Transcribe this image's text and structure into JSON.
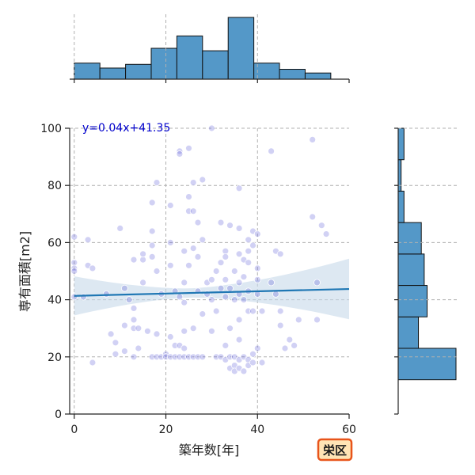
{
  "chart_data": {
    "type": "scatter",
    "xlabel": "築年数[年]",
    "ylabel": "専有面積[m2]",
    "xlim": [
      -1,
      60
    ],
    "ylim": [
      0,
      100
    ],
    "xticks": [
      0,
      20,
      40,
      60
    ],
    "yticks": [
      0,
      20,
      40,
      60,
      80,
      100
    ],
    "grid": true,
    "annotation": "y=0.04x+41.35",
    "regression": {
      "slope": 0.04,
      "intercept": 41.35
    },
    "badge": "栄区",
    "colors": {
      "points": "#5a5ad6",
      "line": "#1f77b4",
      "band": "#c6d9ea",
      "hist": "#5498c8",
      "eq": "#0000cc",
      "badge_fill": "#ffe4b5",
      "badge_border": "#e8541a"
    },
    "top_histogram": {
      "bin_edges": [
        0,
        5.6,
        11.2,
        16.8,
        22.4,
        28,
        33.6,
        39.2,
        44.8,
        50.4,
        56
      ],
      "counts": [
        13,
        9,
        12,
        25,
        35,
        23,
        50,
        13,
        8,
        5
      ]
    },
    "right_histogram": {
      "bin_edges": [
        12,
        23,
        34,
        45,
        56,
        67,
        78,
        89,
        100
      ],
      "counts": [
        20,
        7,
        10,
        9,
        8,
        2,
        1,
        2
      ]
    },
    "points": [
      [
        0,
        62
      ],
      [
        0,
        53
      ],
      [
        0,
        51
      ],
      [
        0,
        50
      ],
      [
        0,
        41
      ],
      [
        2,
        41
      ],
      [
        3,
        61
      ],
      [
        3,
        52
      ],
      [
        4,
        18
      ],
      [
        4,
        51
      ],
      [
        7,
        42
      ],
      [
        8,
        28
      ],
      [
        9,
        21
      ],
      [
        9,
        25
      ],
      [
        10,
        65
      ],
      [
        11,
        44
      ],
      [
        11,
        31
      ],
      [
        11,
        22
      ],
      [
        12,
        40
      ],
      [
        13,
        54
      ],
      [
        13,
        37
      ],
      [
        13,
        33
      ],
      [
        13,
        30
      ],
      [
        13,
        20
      ],
      [
        14,
        30
      ],
      [
        14,
        23
      ],
      [
        15,
        54
      ],
      [
        15,
        46
      ],
      [
        15,
        56
      ],
      [
        16,
        29
      ],
      [
        17,
        74
      ],
      [
        17,
        64
      ],
      [
        17,
        59
      ],
      [
        17,
        55
      ],
      [
        17,
        20
      ],
      [
        18,
        81
      ],
      [
        18,
        50
      ],
      [
        18,
        28
      ],
      [
        18,
        20
      ],
      [
        19,
        42
      ],
      [
        19,
        20
      ],
      [
        20,
        21
      ],
      [
        20,
        20
      ],
      [
        21,
        73
      ],
      [
        21,
        60
      ],
      [
        21,
        52
      ],
      [
        21,
        27
      ],
      [
        21,
        20
      ],
      [
        22,
        43
      ],
      [
        22,
        24
      ],
      [
        22,
        20
      ],
      [
        23,
        92
      ],
      [
        23,
        91
      ],
      [
        23,
        24
      ],
      [
        23,
        20
      ],
      [
        23,
        41
      ],
      [
        24,
        57
      ],
      [
        24,
        46
      ],
      [
        24,
        39
      ],
      [
        24,
        29
      ],
      [
        24,
        23
      ],
      [
        24,
        20
      ],
      [
        25,
        93
      ],
      [
        25,
        76
      ],
      [
        25,
        71
      ],
      [
        25,
        52
      ],
      [
        25,
        20
      ],
      [
        26,
        81
      ],
      [
        26,
        71
      ],
      [
        26,
        58
      ],
      [
        26,
        30
      ],
      [
        26,
        20
      ],
      [
        27,
        67
      ],
      [
        27,
        55
      ],
      [
        27,
        43
      ],
      [
        27,
        20
      ],
      [
        28,
        82
      ],
      [
        28,
        61
      ],
      [
        28,
        35
      ],
      [
        28,
        20
      ],
      [
        29,
        46
      ],
      [
        29,
        42
      ],
      [
        30,
        100
      ],
      [
        30,
        47
      ],
      [
        30,
        40
      ],
      [
        30,
        29
      ],
      [
        31,
        50
      ],
      [
        31,
        36
      ],
      [
        31,
        20
      ],
      [
        32,
        67
      ],
      [
        32,
        53
      ],
      [
        32,
        44
      ],
      [
        32,
        20
      ],
      [
        33,
        57
      ],
      [
        33,
        55
      ],
      [
        33,
        47
      ],
      [
        33,
        41
      ],
      [
        33,
        24
      ],
      [
        33,
        19
      ],
      [
        34,
        66
      ],
      [
        34,
        44
      ],
      [
        34,
        30
      ],
      [
        34,
        20
      ],
      [
        34,
        16
      ],
      [
        35,
        50
      ],
      [
        35,
        40
      ],
      [
        35,
        20
      ],
      [
        35,
        17
      ],
      [
        35,
        15
      ],
      [
        36,
        79
      ],
      [
        36,
        65
      ],
      [
        36,
        56
      ],
      [
        36,
        46
      ],
      [
        36,
        42
      ],
      [
        36,
        33
      ],
      [
        36,
        26
      ],
      [
        36,
        19
      ],
      [
        36,
        16
      ],
      [
        37,
        54
      ],
      [
        37,
        48
      ],
      [
        37,
        40
      ],
      [
        37,
        20
      ],
      [
        37,
        15
      ],
      [
        38,
        61
      ],
      [
        38,
        57
      ],
      [
        38,
        53
      ],
      [
        38,
        43
      ],
      [
        38,
        36
      ],
      [
        38,
        19
      ],
      [
        38,
        17
      ],
      [
        39,
        64
      ],
      [
        39,
        59
      ],
      [
        39,
        36
      ],
      [
        39,
        21
      ],
      [
        39,
        18
      ],
      [
        40,
        63
      ],
      [
        40,
        51
      ],
      [
        40,
        47
      ],
      [
        40,
        42
      ],
      [
        40,
        23
      ],
      [
        41,
        36
      ],
      [
        41,
        18
      ],
      [
        43,
        92
      ],
      [
        43,
        46
      ],
      [
        44,
        57
      ],
      [
        44,
        42
      ],
      [
        45,
        56
      ],
      [
        45,
        36
      ],
      [
        45,
        31
      ],
      [
        46,
        23
      ],
      [
        47,
        26
      ],
      [
        48,
        24
      ],
      [
        49,
        33
      ],
      [
        52,
        96
      ],
      [
        52,
        69
      ],
      [
        53,
        46
      ],
      [
        53,
        33
      ],
      [
        54,
        66
      ],
      [
        55,
        63
      ]
    ]
  }
}
